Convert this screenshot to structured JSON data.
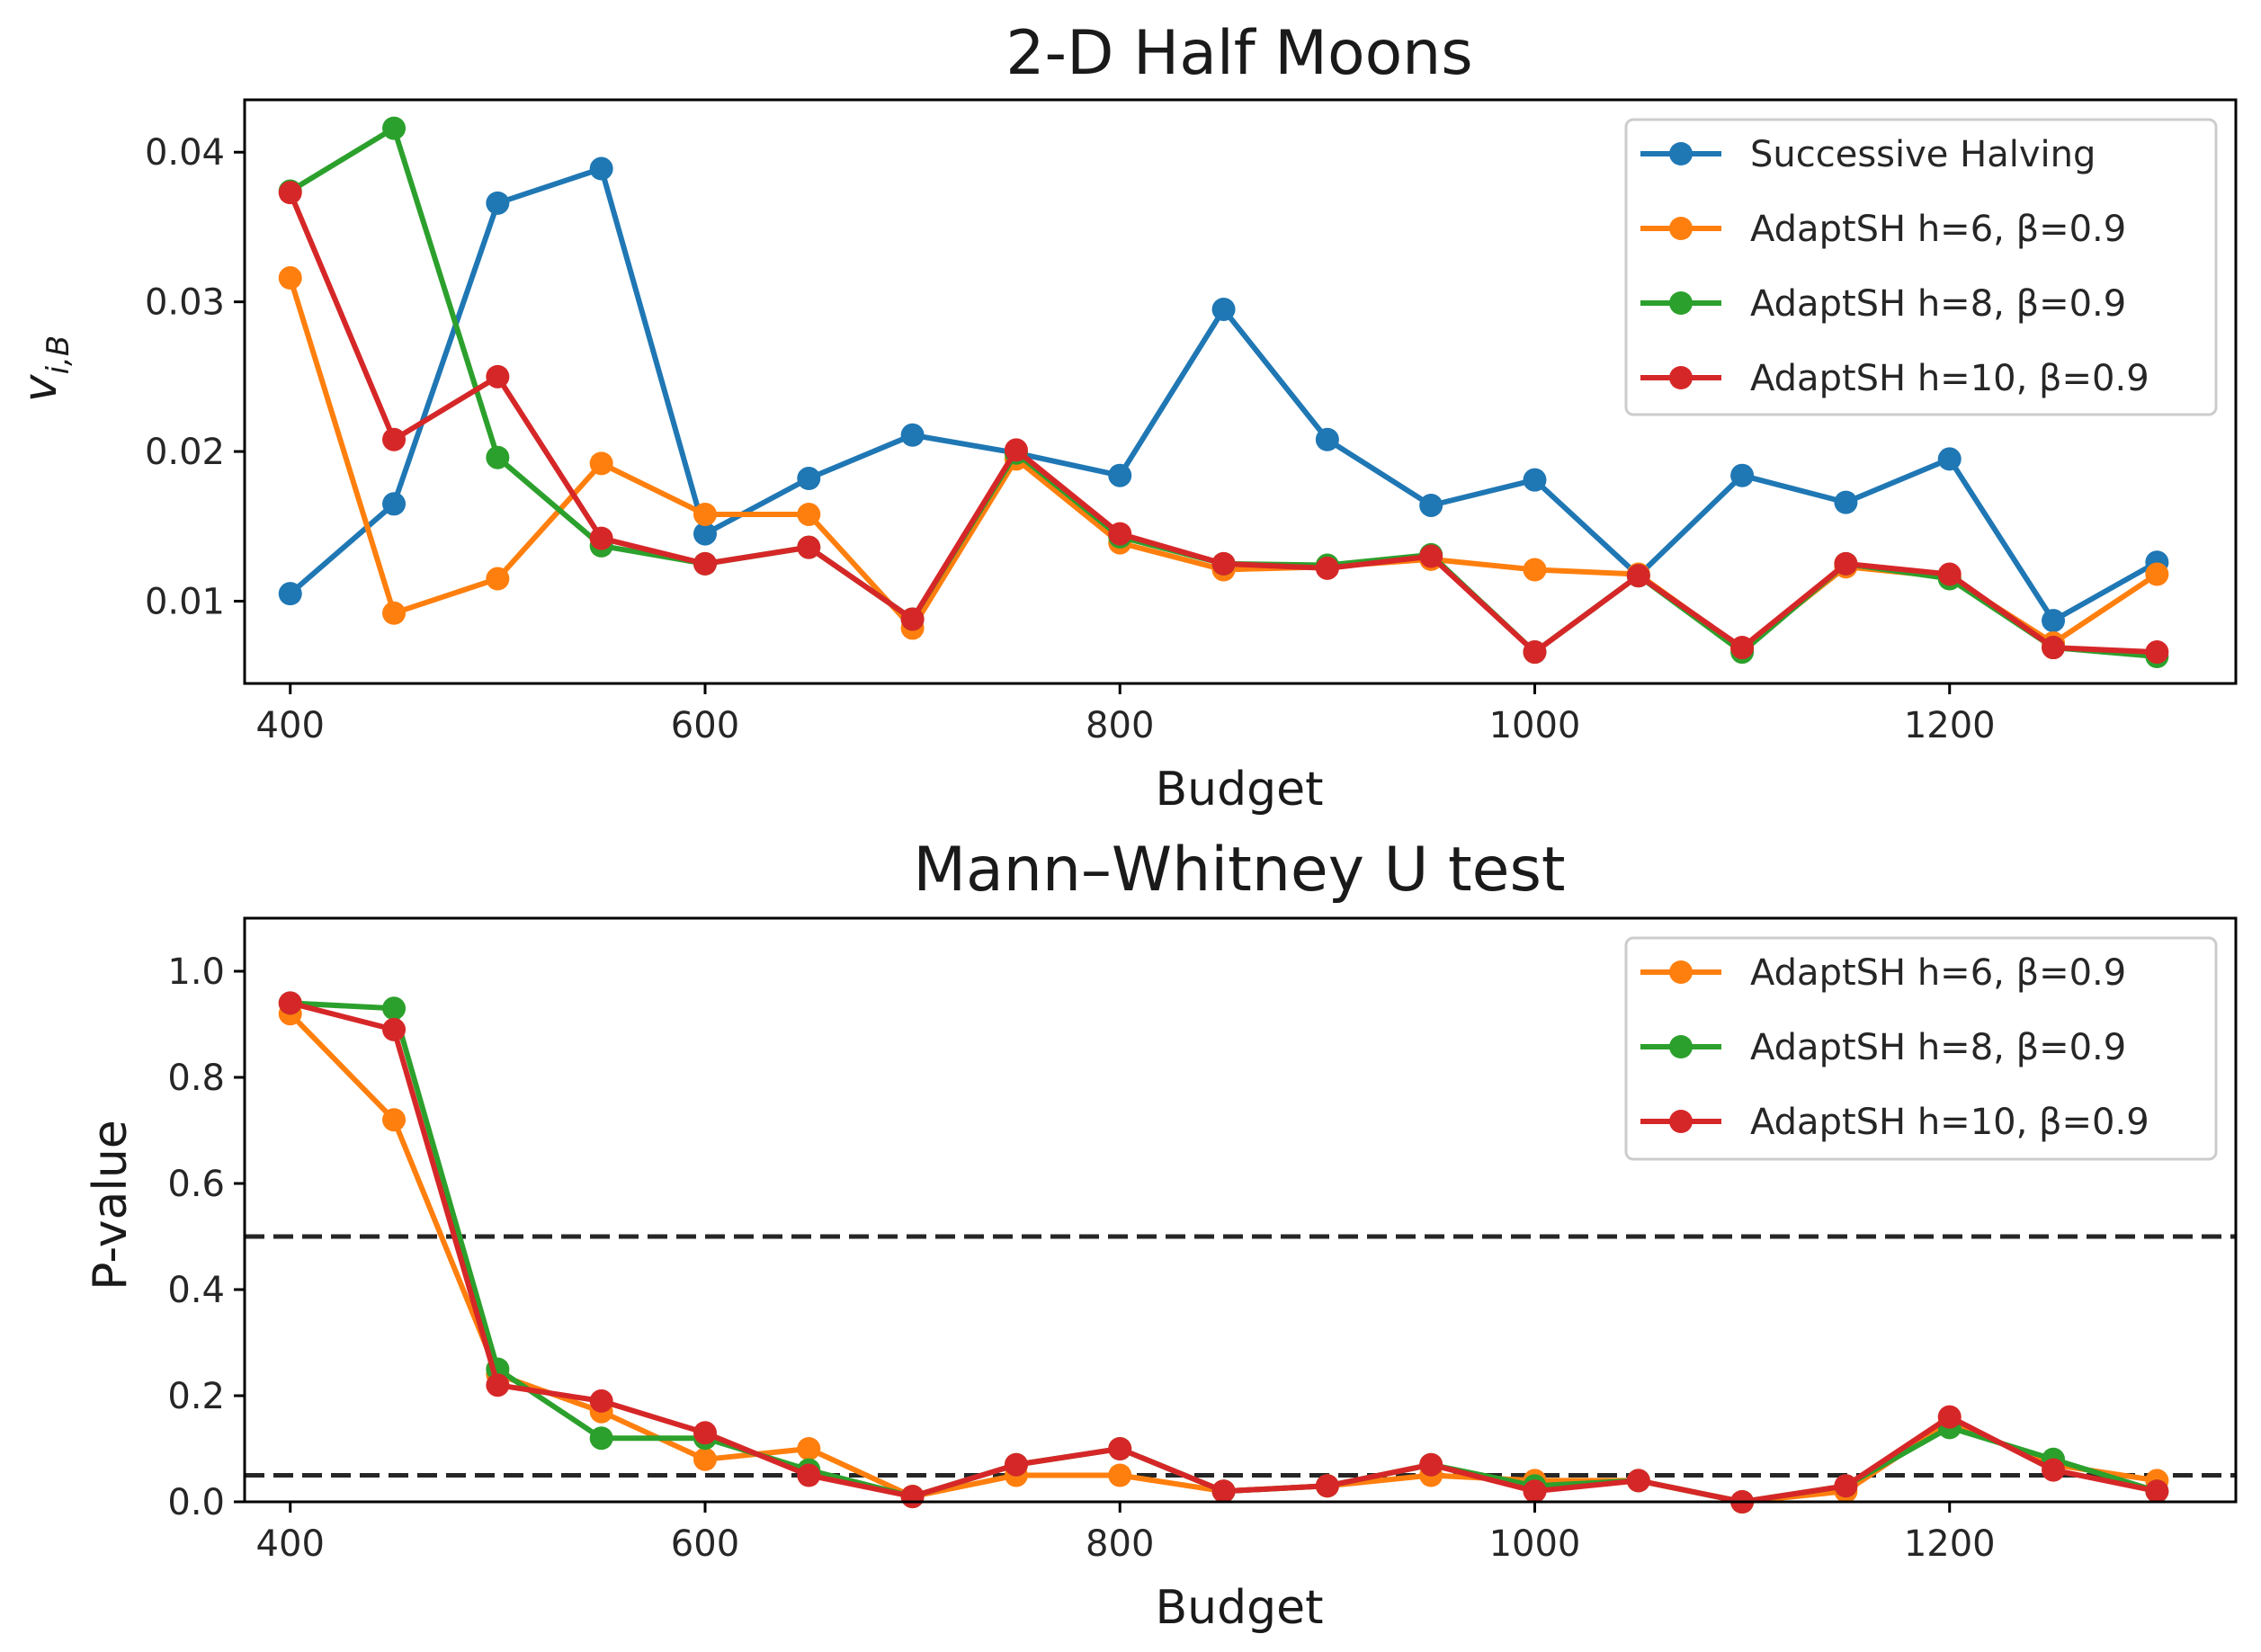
{
  "chart_data": [
    {
      "type": "line",
      "title": "2-D Half Moons",
      "xlabel": "Budget",
      "ylabel": "v̄̃_{i,B}",
      "xlim": [
        378,
        1338
      ],
      "ylim": [
        0.0045,
        0.0435
      ],
      "xticks": [
        400,
        600,
        800,
        1000,
        1200
      ],
      "xtick_labels": [
        "400",
        "600",
        "800",
        "1000",
        "1200"
      ],
      "yticks": [
        0.01,
        0.02,
        0.03,
        0.04
      ],
      "ytick_labels": [
        "0.01",
        "0.02",
        "0.03",
        "0.04"
      ],
      "grid": false,
      "legend_position": "upper right",
      "x": [
        400,
        450,
        500,
        550,
        600,
        650,
        700,
        750,
        800,
        850,
        900,
        950,
        1000,
        1050,
        1100,
        1150,
        1200,
        1250,
        1300
      ],
      "series": [
        {
          "name": "Successive Halving",
          "color": "#1f77b4",
          "values": [
            0.0105,
            0.0165,
            0.0366,
            0.0389,
            0.0145,
            0.0182,
            0.0211,
            0.0199,
            0.0184,
            0.0295,
            0.0208,
            0.0164,
            0.0181,
            0.0117,
            0.0184,
            0.0166,
            0.0195,
            0.0087,
            0.0126
          ]
        },
        {
          "name": "AdaptSH h=6, β=0.9",
          "color": "#ff7f0e",
          "values": [
            0.0316,
            0.0092,
            0.0115,
            0.0192,
            0.0158,
            0.0158,
            0.0082,
            0.0195,
            0.0139,
            0.0121,
            0.0123,
            0.0128,
            0.0121,
            0.0118,
            0.0068,
            0.0123,
            0.0116,
            0.0072,
            0.0118
          ]
        },
        {
          "name": "AdaptSH h=8, β=0.9",
          "color": "#2ca02c",
          "values": [
            0.0374,
            0.0416,
            0.0196,
            0.0137,
            0.0125,
            0.0136,
            0.0088,
            0.0199,
            0.0143,
            0.0125,
            0.0124,
            0.0131,
            0.0066,
            0.0117,
            0.0066,
            0.0125,
            0.0115,
            0.0069,
            0.0063
          ]
        },
        {
          "name": "AdaptSH h=10, β=0.9",
          "color": "#d62728",
          "values": [
            0.0373,
            0.0208,
            0.025,
            0.0142,
            0.0125,
            0.0136,
            0.0088,
            0.0201,
            0.0145,
            0.0125,
            0.0122,
            0.013,
            0.0066,
            0.0117,
            0.0069,
            0.0125,
            0.0118,
            0.0069,
            0.0066
          ]
        }
      ]
    },
    {
      "type": "line",
      "title": "Mann–Whitney U test",
      "xlabel": "Budget",
      "ylabel": "P-value",
      "xlim": [
        378,
        1338
      ],
      "ylim": [
        0,
        1.1
      ],
      "xticks": [
        400,
        600,
        800,
        1000,
        1200
      ],
      "xtick_labels": [
        "400",
        "600",
        "800",
        "1000",
        "1200"
      ],
      "yticks": [
        0.0,
        0.2,
        0.4,
        0.6,
        0.8,
        1.0
      ],
      "ytick_labels": [
        "0.0",
        "0.2",
        "0.4",
        "0.6",
        "0.8",
        "1.0"
      ],
      "grid": false,
      "legend_position": "upper right",
      "hlines": [
        0.5,
        0.05
      ],
      "hline_color": "#262626",
      "x": [
        400,
        450,
        500,
        550,
        600,
        650,
        700,
        750,
        800,
        850,
        900,
        950,
        1000,
        1050,
        1100,
        1150,
        1200,
        1250,
        1300
      ],
      "series": [
        {
          "name": "AdaptSH h=6, β=0.9",
          "color": "#ff7f0e",
          "values": [
            0.92,
            0.72,
            0.24,
            0.17,
            0.08,
            0.1,
            0.01,
            0.05,
            0.05,
            0.02,
            0.03,
            0.05,
            0.04,
            0.04,
            0.0,
            0.02,
            0.15,
            0.07,
            0.04
          ]
        },
        {
          "name": "AdaptSH h=8, β=0.9",
          "color": "#2ca02c",
          "values": [
            0.94,
            0.93,
            0.25,
            0.12,
            0.12,
            0.06,
            0.01,
            0.07,
            0.1,
            0.02,
            0.03,
            0.07,
            0.03,
            0.04,
            0.0,
            0.03,
            0.14,
            0.08,
            0.02
          ]
        },
        {
          "name": "AdaptSH h=10, β=0.9",
          "color": "#d62728",
          "values": [
            0.94,
            0.89,
            0.22,
            0.19,
            0.13,
            0.05,
            0.01,
            0.07,
            0.1,
            0.02,
            0.03,
            0.07,
            0.02,
            0.04,
            0.0,
            0.03,
            0.16,
            0.06,
            0.02
          ]
        }
      ]
    }
  ]
}
